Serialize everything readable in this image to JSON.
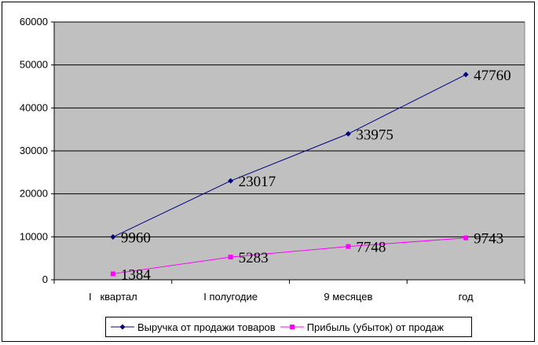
{
  "chart_data": {
    "type": "line",
    "categories": [
      "I   квартал",
      "I полугодие",
      "9 месяцев",
      "год"
    ],
    "series": [
      {
        "name": "Выручка от продажи товаров",
        "values": [
          9960,
          23017,
          33975,
          47760
        ],
        "color": "#000080",
        "marker": "diamond"
      },
      {
        "name": "Прибыль (убыток) от продаж",
        "values": [
          1384,
          5283,
          7748,
          9743
        ],
        "color": "#FF00FF",
        "marker": "square"
      }
    ],
    "ylim": [
      0,
      60000
    ],
    "yticks": [
      "0",
      "10000",
      "20000",
      "30000",
      "40000",
      "50000",
      "60000"
    ],
    "grid": true,
    "plot_background": "#C0C0C0",
    "legend_position": "bottom"
  }
}
